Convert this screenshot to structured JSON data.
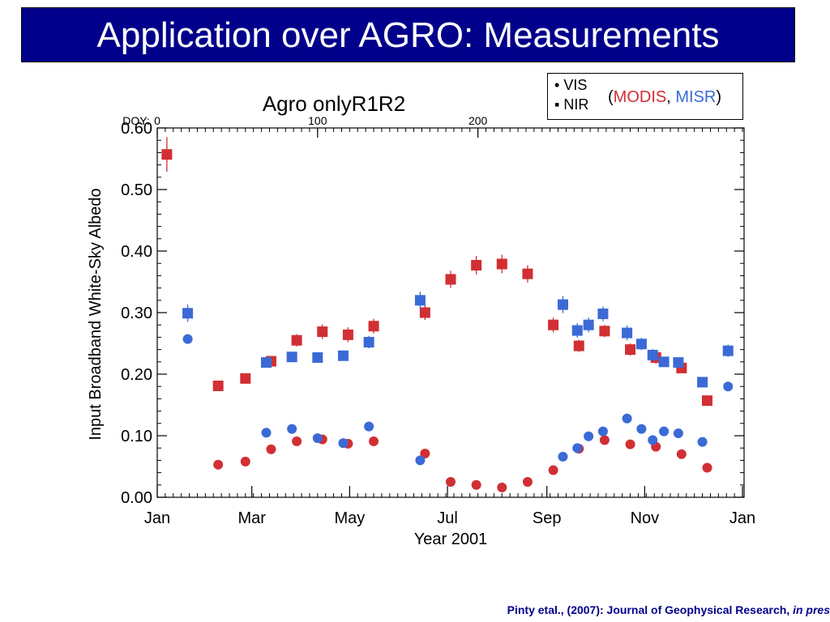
{
  "slide": {
    "title": "Application over AGRO: Measurements",
    "footer_prefix": "Pinty etal., (2007): Journal of Geophysical Research, ",
    "footer_italic": "in pres"
  },
  "legend": {
    "vis_label": "VIS",
    "nir_label": "NIR",
    "vis_symbol": "•",
    "nir_symbol": "▪",
    "open_paren": "(",
    "modis_label": "MODIS",
    "comma": ", ",
    "misr_label": "MISR",
    "close_paren": ")"
  },
  "colors": {
    "modis": "#d12f33",
    "misr": "#3b6ad6",
    "title_bg": "#00008b"
  },
  "chart_data": {
    "type": "scatter",
    "title": "Agro  onlyR1R2",
    "xlabel": "Year 2001",
    "ylabel": "Input Broadband White-Sky Albedo",
    "x_units": "day of year",
    "xlim": [
      0,
      366
    ],
    "ylim": [
      0,
      0.6
    ],
    "x_tick_values": [
      0,
      59,
      120,
      181,
      243,
      304,
      365
    ],
    "x_tick_labels": [
      "Jan",
      "Mar",
      "May",
      "Jul",
      "Sep",
      "Nov",
      "Jan"
    ],
    "y_tick_values": [
      0,
      0.1,
      0.2,
      0.3,
      0.4,
      0.5,
      0.6
    ],
    "y_tick_labels": [
      "0.00",
      "0.10",
      "0.20",
      "0.30",
      "0.40",
      "0.50",
      "0.60"
    ],
    "top_axis_label": "DOY:",
    "top_tick_values": [
      0,
      100,
      200
    ],
    "top_tick_labels": [
      "0",
      "100",
      "200"
    ],
    "grid": false,
    "series": [
      {
        "name": "MODIS NIR",
        "source": "MODIS",
        "band": "NIR",
        "marker": "square",
        "color": "#d12f33",
        "points": [
          [
            6,
            0.557,
            0.028
          ],
          [
            38,
            0.181,
            0.007
          ],
          [
            55,
            0.193,
            0.008
          ],
          [
            71,
            0.221,
            0.008
          ],
          [
            87,
            0.255,
            0.01
          ],
          [
            103,
            0.269,
            0.012
          ],
          [
            119,
            0.264,
            0.012
          ],
          [
            135,
            0.278,
            0.012
          ],
          [
            167,
            0.3,
            0.012
          ],
          [
            183,
            0.354,
            0.014
          ],
          [
            199,
            0.377,
            0.015
          ],
          [
            215,
            0.379,
            0.015
          ],
          [
            231,
            0.363,
            0.014
          ],
          [
            247,
            0.28,
            0.012
          ],
          [
            263,
            0.246,
            0.01
          ],
          [
            279,
            0.27,
            0.01
          ],
          [
            295,
            0.24,
            0.01
          ],
          [
            311,
            0.227,
            0.01
          ],
          [
            327,
            0.21,
            0.008
          ],
          [
            343,
            0.157,
            0.006
          ]
        ]
      },
      {
        "name": "MISR NIR",
        "source": "MISR",
        "band": "NIR",
        "marker": "square",
        "color": "#3b6ad6",
        "points": [
          [
            19,
            0.299,
            0.014
          ],
          [
            68,
            0.219,
            0.008
          ],
          [
            84,
            0.228,
            0.008
          ],
          [
            100,
            0.227,
            0.008
          ],
          [
            116,
            0.23,
            0.008
          ],
          [
            132,
            0.252,
            0.01
          ],
          [
            164,
            0.32,
            0.014
          ],
          [
            253,
            0.313,
            0.014
          ],
          [
            262,
            0.271,
            0.012
          ],
          [
            269,
            0.28,
            0.012
          ],
          [
            278,
            0.298,
            0.012
          ],
          [
            293,
            0.267,
            0.012
          ],
          [
            302,
            0.249,
            0.01
          ],
          [
            309,
            0.231,
            0.01
          ],
          [
            316,
            0.22,
            0.008
          ],
          [
            325,
            0.219,
            0.008
          ],
          [
            340,
            0.187,
            0.006
          ],
          [
            356,
            0.238,
            0.01
          ]
        ]
      },
      {
        "name": "MODIS VIS",
        "source": "MODIS",
        "band": "VIS",
        "marker": "circle",
        "color": "#d12f33",
        "points": [
          [
            38,
            0.053
          ],
          [
            55,
            0.058
          ],
          [
            71,
            0.078
          ],
          [
            87,
            0.091
          ],
          [
            103,
            0.094
          ],
          [
            119,
            0.087
          ],
          [
            135,
            0.091
          ],
          [
            167,
            0.071
          ],
          [
            183,
            0.025
          ],
          [
            199,
            0.02
          ],
          [
            215,
            0.016
          ],
          [
            231,
            0.025
          ],
          [
            247,
            0.044
          ],
          [
            263,
            0.079
          ],
          [
            279,
            0.093
          ],
          [
            295,
            0.086
          ],
          [
            311,
            0.082
          ],
          [
            327,
            0.07
          ],
          [
            343,
            0.048
          ]
        ]
      },
      {
        "name": "MISR VIS",
        "source": "MISR",
        "band": "VIS",
        "marker": "circle",
        "color": "#3b6ad6",
        "points": [
          [
            19,
            0.257
          ],
          [
            68,
            0.105
          ],
          [
            84,
            0.111
          ],
          [
            100,
            0.096
          ],
          [
            116,
            0.088
          ],
          [
            132,
            0.115
          ],
          [
            164,
            0.06
          ],
          [
            253,
            0.066
          ],
          [
            262,
            0.08
          ],
          [
            269,
            0.099
          ],
          [
            278,
            0.107
          ],
          [
            293,
            0.128
          ],
          [
            302,
            0.111
          ],
          [
            309,
            0.093
          ],
          [
            316,
            0.107
          ],
          [
            325,
            0.104
          ],
          [
            340,
            0.09
          ],
          [
            356,
            0.18
          ]
        ]
      }
    ]
  }
}
